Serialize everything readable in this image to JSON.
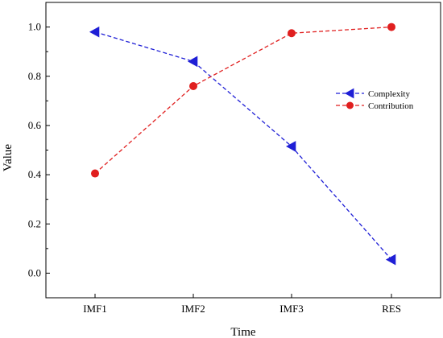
{
  "chart_data": {
    "type": "line",
    "categories": [
      "IMF1",
      "IMF2",
      "IMF3",
      "RES"
    ],
    "xlabel": "Time",
    "ylabel": "Value",
    "ylim": [
      -0.1,
      1.1
    ],
    "yticks": [
      "0.0",
      "0.2",
      "0.4",
      "0.6",
      "0.8",
      "1.0"
    ],
    "grid": false,
    "legend_position": "right",
    "series": [
      {
        "name": "Complexity",
        "values": [
          0.98,
          0.86,
          0.515,
          0.055
        ],
        "color": "#1f1fd6",
        "marker": "triangle-left",
        "line_style": "dashed"
      },
      {
        "name": "Contribution",
        "values": [
          0.405,
          0.76,
          0.975,
          1.0
        ],
        "color": "#e01f1f",
        "marker": "circle",
        "line_style": "dashed"
      }
    ]
  }
}
